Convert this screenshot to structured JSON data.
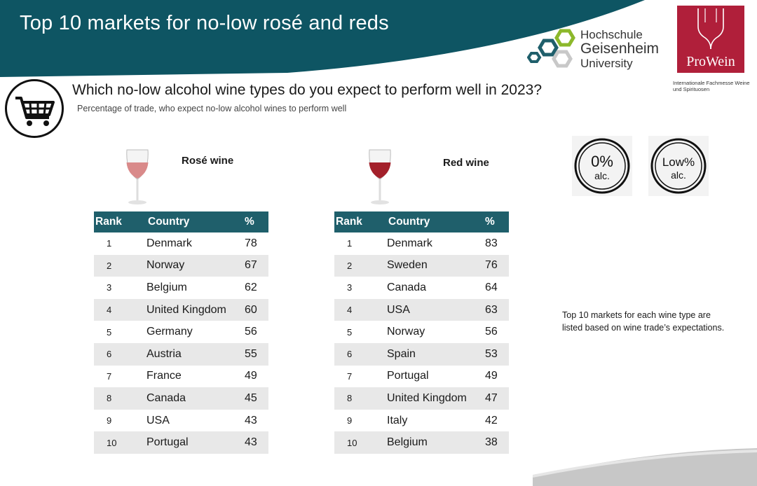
{
  "header": {
    "title": "Top 10 markets for no-low rosé and reds",
    "banner_color": "#0e5563"
  },
  "logos": {
    "hgu": {
      "line1": "Hochschule",
      "line2": "Geisenheim",
      "line3": "University"
    },
    "prowein": {
      "name": "ProWein",
      "subtitle": "Internationale Fachmesse Weine und Spirituosen",
      "color": "#b01f3a"
    }
  },
  "icons": {
    "cart": "shopping-cart-icon",
    "zero_alc": "zero-percent-alcohol-icon",
    "low_alc": "low-percent-alcohol-icon"
  },
  "alc_badges": {
    "zero": {
      "line1": "0%",
      "line2": "alc."
    },
    "low": {
      "line1": "Low%",
      "line2": "alc."
    }
  },
  "question": "Which no-low alcohol wine types do you expect to perform well in 2023?",
  "subtitle": "Percentage of trade, who expect no-low alcohol wines to perform well",
  "columns": {
    "rank": "Rank",
    "country": "Country",
    "pct": "%"
  },
  "rose": {
    "label": "Rosé wine",
    "rows": [
      {
        "rank": "1",
        "country": "Denmark",
        "pct": "78"
      },
      {
        "rank": "2",
        "country": "Norway",
        "pct": "67"
      },
      {
        "rank": "3",
        "country": "Belgium",
        "pct": "62"
      },
      {
        "rank": "4",
        "country": "United Kingdom",
        "pct": "60"
      },
      {
        "rank": "5",
        "country": "Germany",
        "pct": "56"
      },
      {
        "rank": "6",
        "country": "Austria",
        "pct": "55"
      },
      {
        "rank": "7",
        "country": "France",
        "pct": "49"
      },
      {
        "rank": "8",
        "country": "Canada",
        "pct": "45"
      },
      {
        "rank": "9",
        "country": "USA",
        "pct": "43"
      },
      {
        "rank": "10",
        "country": "Portugal",
        "pct": "43"
      }
    ]
  },
  "red": {
    "label": "Red wine",
    "rows": [
      {
        "rank": "1",
        "country": "Denmark",
        "pct": "83"
      },
      {
        "rank": "2",
        "country": "Sweden",
        "pct": "76"
      },
      {
        "rank": "3",
        "country": "Canada",
        "pct": "64"
      },
      {
        "rank": "4",
        "country": "USA",
        "pct": "63"
      },
      {
        "rank": "5",
        "country": "Norway",
        "pct": "56"
      },
      {
        "rank": "6",
        "country": "Spain",
        "pct": "53"
      },
      {
        "rank": "7",
        "country": "Portugal",
        "pct": "49"
      },
      {
        "rank": "8",
        "country": "United Kingdom",
        "pct": "47"
      },
      {
        "rank": "9",
        "country": "Italy",
        "pct": "42"
      },
      {
        "rank": "10",
        "country": "Belgium",
        "pct": "38"
      }
    ]
  },
  "note": "Top 10 markets for each wine type are listed based on wine trade’s expectations."
}
